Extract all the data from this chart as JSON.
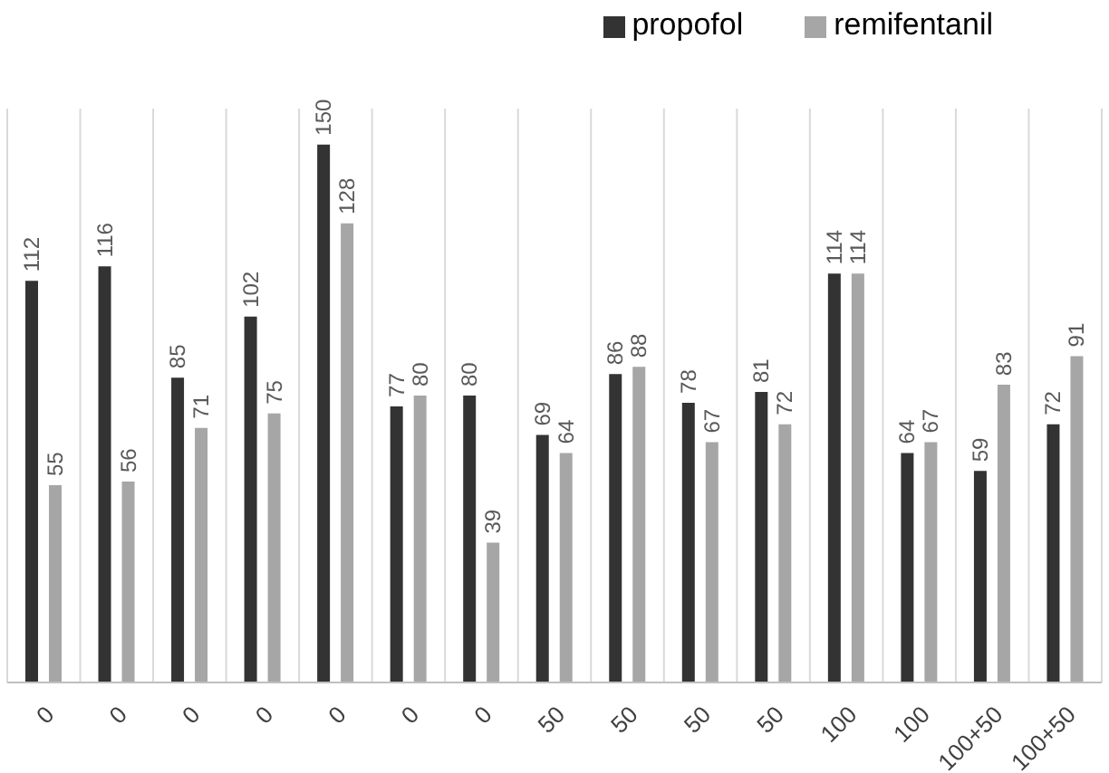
{
  "chart_data": {
    "type": "bar",
    "categories": [
      "0",
      "0",
      "0",
      "0",
      "0",
      "0",
      "0",
      "50",
      "50",
      "50",
      "50",
      "100",
      "100",
      "100+50",
      "100+50"
    ],
    "series": [
      {
        "name": "propofol",
        "color": "#333333",
        "values": [
          112,
          116,
          85,
          102,
          150,
          77,
          80,
          69,
          86,
          78,
          81,
          114,
          64,
          59,
          72
        ]
      },
      {
        "name": "remifentanil",
        "color": "#a6a6a6",
        "values": [
          55,
          56,
          71,
          75,
          128,
          80,
          39,
          64,
          88,
          67,
          72,
          114,
          67,
          83,
          91
        ]
      }
    ],
    "ylim": [
      0,
      160
    ],
    "tick_labels": "x",
    "data_labels": true,
    "grid": "x",
    "legend": "top right"
  }
}
